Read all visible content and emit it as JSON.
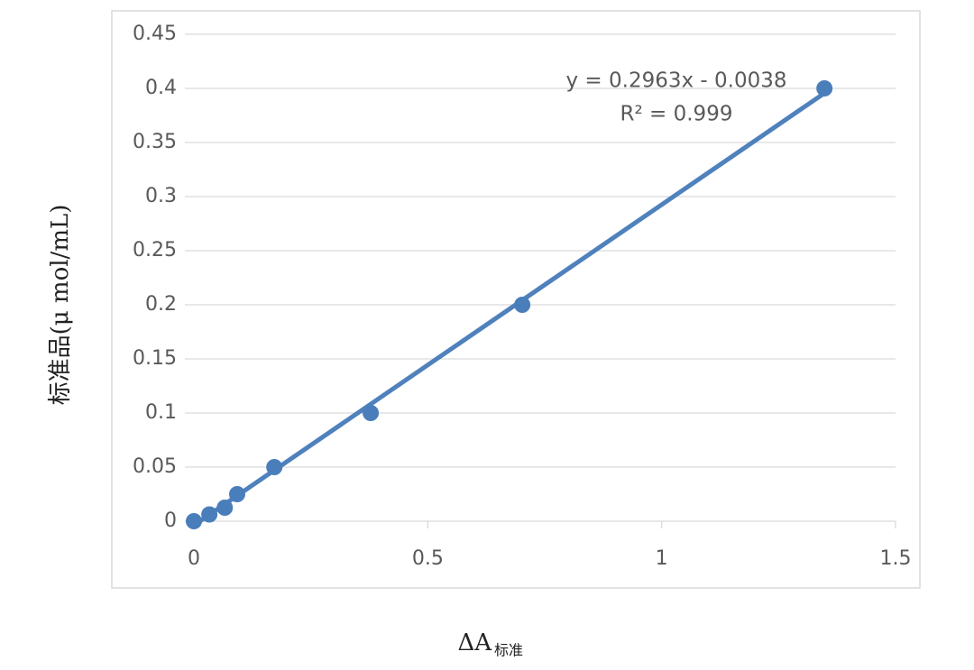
{
  "chart_data": {
    "type": "scatter",
    "x_label": "ΔA",
    "x_label_sub": "标准",
    "y_label": "标准品(μ mol/mL)",
    "series": [
      {
        "name": "标准品",
        "color": "#4a7ebb",
        "x": [
          0,
          0.033,
          0.066,
          0.0925,
          0.172,
          0.378,
          0.702,
          1.348
        ],
        "values": [
          0,
          0.00625,
          0.0125,
          0.025,
          0.05,
          0.1,
          0.2,
          0.4
        ]
      }
    ],
    "trendline": {
      "equation": "y = 0.2963x - 0.0038",
      "r2": "R² = 0.999",
      "slope": 0.2963,
      "intercept": -0.0038,
      "color": "#4f81bd"
    },
    "xlim": [
      0,
      1.5
    ],
    "xticks": [
      0,
      0.5,
      1,
      1.5
    ],
    "ylim": [
      0,
      0.45
    ],
    "yticks": [
      0,
      0.05,
      0.1,
      0.15,
      0.2,
      0.25,
      0.3,
      0.35,
      0.4,
      0.45
    ],
    "grid": true
  }
}
